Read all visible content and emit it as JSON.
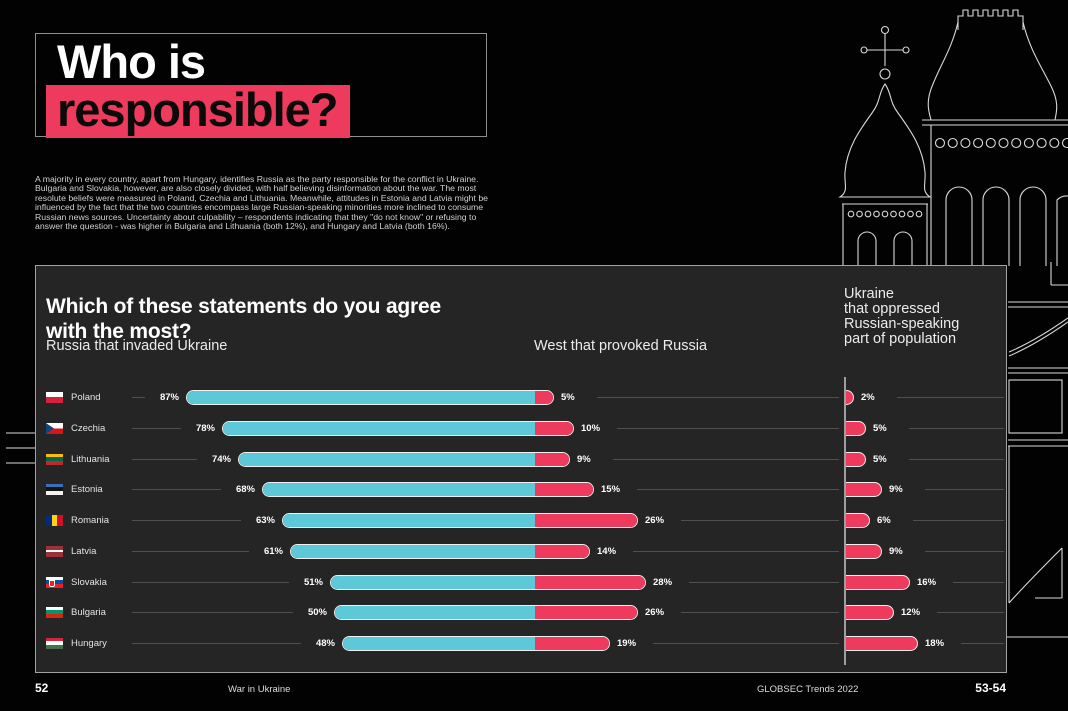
{
  "theme": {
    "pink": "#ee3a5c",
    "teal": "#5cc8d8",
    "panel_bg": "#252525",
    "line_art": "#d9d9d9",
    "background": "#020202",
    "decor": "orthodox-church-line-art"
  },
  "header": {
    "title_line1": "Who is",
    "title_line2": "responsible?",
    "intro": "A majority in every country, apart from Hungary, identifies Russia as the party responsible for the conflict in Ukraine. Bulgaria and Slovakia, however, are also closely divided, with half believing disinformation about the war. The most resolute beliefs were measured in Poland, Czechia and Lithuania. Meanwhile, attitudes in Estonia and Latvia might be influenced by the fact that the two countries encompass large Russian-speaking minorities more inclined to consume Russian news sources. Uncertainty about culpability – respondents indicating that they \"do not know\" or refusing to answer the question - was higher in Bulgaria and Lithuania (both 12%), and Hungary and Latvia (both 16%)."
  },
  "chart_data": {
    "type": "bar",
    "orientation": "horizontal",
    "unit": "%",
    "title": "Which of these statements do you agree with the most?",
    "question": "Which of these statements do you agree\nwith the most?",
    "columns": [
      "Russia that invaded Ukraine",
      "West that provoked Russia",
      "Ukraine\nthat oppressed\nRussian-speaking\npart of population"
    ],
    "categories": [
      "Poland",
      "Czechia",
      "Lithuania",
      "Estonia",
      "Romania",
      "Latvia",
      "Slovakia",
      "Bulgaria",
      "Hungary"
    ],
    "series": [
      {
        "name": "Russia that invaded Ukraine",
        "color": "#5cc8d8",
        "values": [
          87,
          78,
          74,
          68,
          63,
          61,
          51,
          50,
          48
        ]
      },
      {
        "name": "West that provoked Russia",
        "color": "#ee3a5c",
        "values": [
          5,
          10,
          9,
          15,
          26,
          14,
          28,
          26,
          19
        ]
      },
      {
        "name": "Ukraine that oppressed Russian-speaking part of population",
        "color": "#ee3a5c",
        "values": [
          2,
          5,
          5,
          9,
          6,
          9,
          16,
          12,
          18
        ]
      }
    ],
    "xlim": [
      0,
      100
    ],
    "grid": false,
    "legend_position": "column-headers",
    "flags": {
      "Poland": {
        "dir": "h",
        "colors": [
          "#ffffff",
          "#d4213d"
        ]
      },
      "Czechia": {
        "type": "czech",
        "colors": [
          "#ffffff",
          "#d7141a",
          "#11457e"
        ]
      },
      "Lithuania": {
        "dir": "h",
        "colors": [
          "#fdb913",
          "#006a44",
          "#c1272d"
        ]
      },
      "Estonia": {
        "dir": "h",
        "colors": [
          "#3a70b8",
          "#141414",
          "#f2f2f2"
        ]
      },
      "Romania": {
        "dir": "v",
        "colors": [
          "#002b7f",
          "#fcd116",
          "#ce1126"
        ]
      },
      "Latvia": {
        "dir": "h",
        "colors": [
          "#9e3039",
          "#ffffff",
          "#9e3039"
        ],
        "weights": [
          2,
          1,
          2
        ]
      },
      "Slovakia": {
        "type": "slovakia",
        "dir": "h",
        "colors": [
          "#ffffff",
          "#0b4ea2",
          "#ee1c25"
        ]
      },
      "Bulgaria": {
        "dir": "h",
        "colors": [
          "#ffffff",
          "#00966e",
          "#d62612"
        ]
      },
      "Hungary": {
        "dir": "h",
        "colors": [
          "#ce2939",
          "#ffffff",
          "#477050"
        ]
      }
    }
  },
  "footer": {
    "page_left": "52",
    "section": "War in Ukraine",
    "publication": "GLOBSEC Trends 2022",
    "page_right": "53-54"
  }
}
